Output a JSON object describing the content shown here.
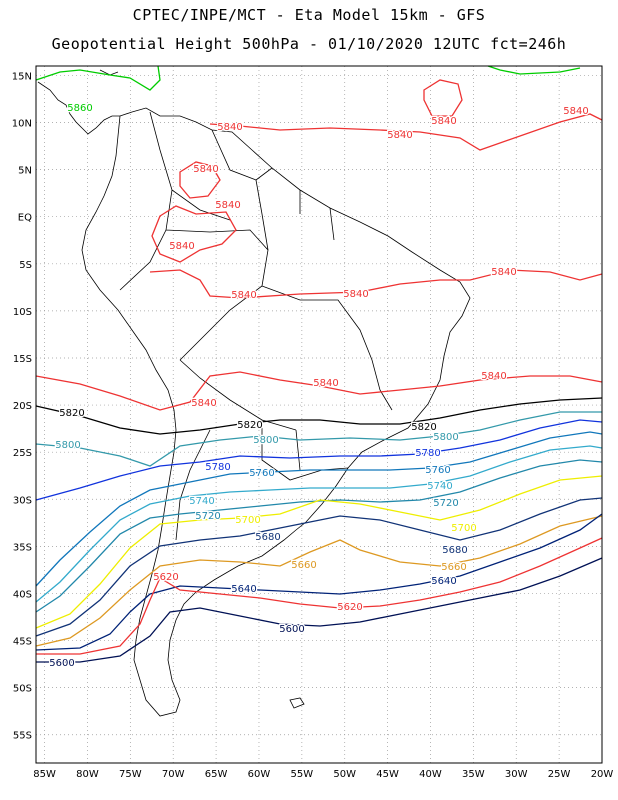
{
  "header": {
    "line1": "CPTEC/INPE/MCT -  Eta Model 15km - GFS",
    "line2": "Geopotential Height 500hPa - 01/10/2020 12UTC fct=246h"
  },
  "map_data": {
    "type": "contour_map",
    "variable": "Geopotential Height 500hPa",
    "lon_range": [
      -86,
      -20
    ],
    "lat_range": [
      -58,
      16
    ],
    "grid": true,
    "lon_ticks": [
      "85W",
      "80W",
      "75W",
      "70W",
      "65W",
      "60W",
      "55W",
      "50W",
      "45W",
      "40W",
      "35W",
      "30W",
      "25W",
      "20W"
    ],
    "lat_ticks": [
      "15N",
      "10N",
      "5N",
      "EQ",
      "5S",
      "10S",
      "15S",
      "20S",
      "25S",
      "30S",
      "35S",
      "40S",
      "45S",
      "50S",
      "55S"
    ],
    "lon_tick_values": [
      -85,
      -80,
      -75,
      -70,
      -65,
      -60,
      -55,
      -50,
      -45,
      -40,
      -35,
      -30,
      -25,
      -20
    ],
    "lat_tick_values": [
      15,
      10,
      5,
      0,
      -5,
      -10,
      -15,
      -20,
      -25,
      -30,
      -35,
      -40,
      -45,
      -50,
      -55
    ],
    "contours": [
      {
        "level": "5860",
        "color": "#00cc00"
      },
      {
        "level": "5840",
        "color": "#ee3333"
      },
      {
        "level": "5820",
        "color": "#000000"
      },
      {
        "level": "5800",
        "color": "#3399aa"
      },
      {
        "level": "5780",
        "color": "#1133dd"
      },
      {
        "level": "5760",
        "color": "#1177bb"
      },
      {
        "level": "5740",
        "color": "#33aacc"
      },
      {
        "level": "5720",
        "color": "#2288aa"
      },
      {
        "level": "5700",
        "color": "#eeee00"
      },
      {
        "level": "5680",
        "color": "#113377"
      },
      {
        "level": "5660",
        "color": "#dd9922"
      },
      {
        "level": "5640",
        "color": "#002277"
      },
      {
        "level": "5620",
        "color": "#ee3333"
      },
      {
        "level": "5600",
        "color": "#001155"
      }
    ]
  }
}
